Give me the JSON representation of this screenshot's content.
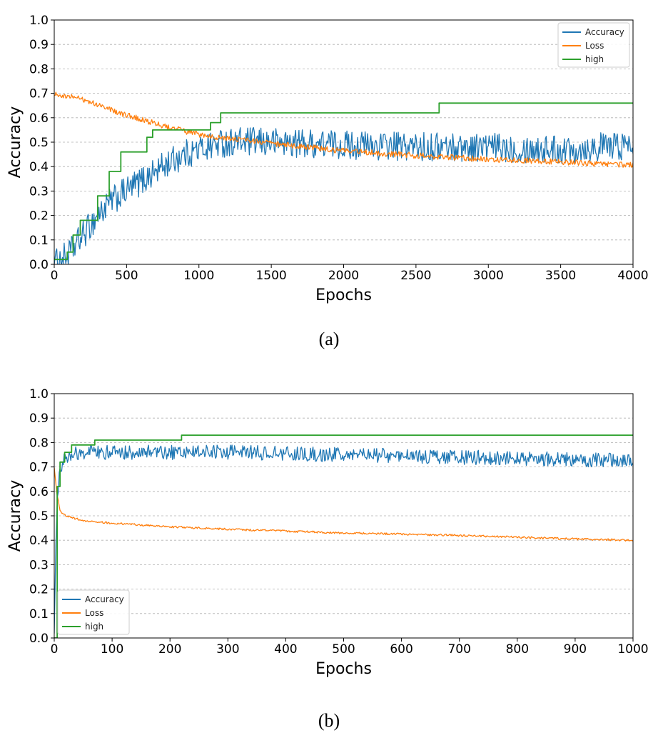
{
  "captions": {
    "a": "(a)",
    "b": "(b)"
  },
  "colors": {
    "accuracy": "#1f77b4",
    "loss": "#ff7f0e",
    "high": "#2ca02c",
    "grid": "#b0b0b0"
  },
  "chart_data": [
    {
      "id": "a",
      "type": "line",
      "title": "",
      "xlabel": "Epochs",
      "ylabel": "Accuracy",
      "xlim": [
        0,
        4000
      ],
      "ylim": [
        0,
        1.0
      ],
      "xticks": [
        0,
        500,
        1000,
        1500,
        2000,
        2500,
        3000,
        3500,
        4000
      ],
      "yticks": [
        "0.0",
        "0.1",
        "0.2",
        "0.3",
        "0.4",
        "0.5",
        "0.6",
        "0.7",
        "0.8",
        "0.9",
        "1.0"
      ],
      "grid": "horizontal dashed",
      "legend": "top-right",
      "series": [
        {
          "name": "Accuracy",
          "color": "#1f77b4",
          "noise": 0.06,
          "x": [
            0,
            100,
            150,
            200,
            300,
            400,
            500,
            600,
            700,
            800,
            900,
            1000,
            1100,
            1200,
            1500,
            2000,
            2500,
            3000,
            3500,
            4000
          ],
          "y": [
            0.0,
            0.04,
            0.08,
            0.12,
            0.2,
            0.26,
            0.3,
            0.34,
            0.38,
            0.42,
            0.45,
            0.47,
            0.49,
            0.5,
            0.5,
            0.49,
            0.48,
            0.48,
            0.47,
            0.49
          ]
        },
        {
          "name": "Loss",
          "color": "#ff7f0e",
          "noise": 0.012,
          "x": [
            0,
            200,
            500,
            800,
            1000,
            1500,
            2000,
            2500,
            3000,
            3500,
            4000
          ],
          "y": [
            0.7,
            0.675,
            0.61,
            0.56,
            0.53,
            0.495,
            0.465,
            0.445,
            0.43,
            0.42,
            0.405
          ]
        },
        {
          "name": "high",
          "color": "#2ca02c",
          "step": true,
          "x": [
            0,
            90,
            130,
            180,
            300,
            380,
            460,
            500,
            640,
            680,
            1080,
            1150,
            2660,
            4000
          ],
          "y": [
            0.02,
            0.05,
            0.12,
            0.18,
            0.28,
            0.38,
            0.46,
            0.46,
            0.52,
            0.55,
            0.58,
            0.62,
            0.66,
            0.66
          ]
        }
      ]
    },
    {
      "id": "b",
      "type": "line",
      "title": "",
      "xlabel": "Epochs",
      "ylabel": "Accuracy",
      "xlim": [
        0,
        1000
      ],
      "ylim": [
        0,
        1.0
      ],
      "xticks": [
        0,
        100,
        200,
        300,
        400,
        500,
        600,
        700,
        800,
        900,
        1000
      ],
      "yticks": [
        "0.0",
        "0.1",
        "0.2",
        "0.3",
        "0.4",
        "0.5",
        "0.6",
        "0.7",
        "0.8",
        "0.9",
        "1.0"
      ],
      "grid": "horizontal dashed",
      "legend": "bottom-left",
      "series": [
        {
          "name": "Accuracy",
          "color": "#1f77b4",
          "noise": 0.03,
          "x": [
            0,
            3,
            6,
            10,
            20,
            40,
            100,
            300,
            500,
            700,
            900,
            1000
          ],
          "y": [
            0.0,
            0.4,
            0.6,
            0.7,
            0.74,
            0.76,
            0.76,
            0.76,
            0.75,
            0.74,
            0.73,
            0.73
          ]
        },
        {
          "name": "Loss",
          "color": "#ff7f0e",
          "noise": 0.004,
          "x": [
            0,
            4,
            10,
            20,
            50,
            100,
            200,
            300,
            500,
            700,
            900,
            1000
          ],
          "y": [
            0.7,
            0.6,
            0.52,
            0.5,
            0.48,
            0.47,
            0.455,
            0.445,
            0.43,
            0.42,
            0.405,
            0.4
          ]
        },
        {
          "name": "high",
          "color": "#2ca02c",
          "step": true,
          "x": [
            0,
            5,
            10,
            18,
            30,
            70,
            220,
            1000
          ],
          "y": [
            0.0,
            0.62,
            0.72,
            0.76,
            0.79,
            0.81,
            0.83,
            0.83
          ]
        }
      ]
    }
  ]
}
